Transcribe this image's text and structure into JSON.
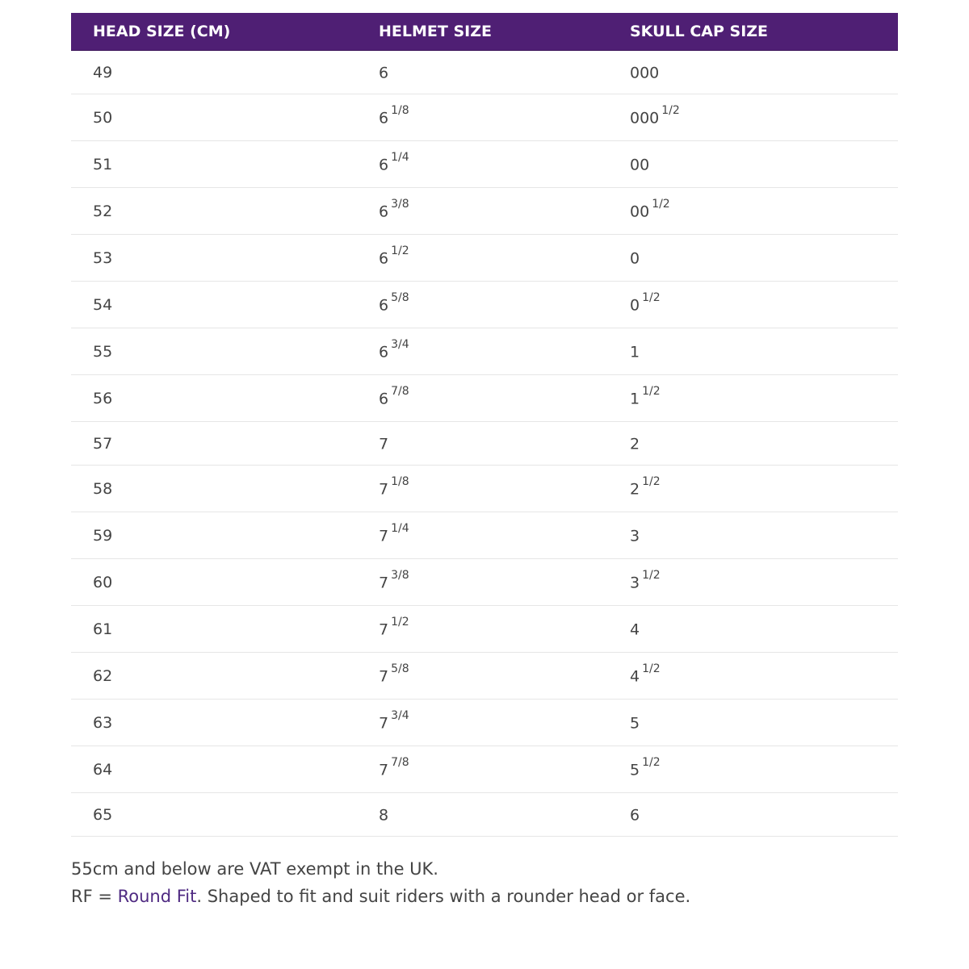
{
  "table": {
    "headers": [
      "HEAD SIZE (CM)",
      "HELMET SIZE",
      "SKULL CAP SIZE"
    ],
    "rows": [
      {
        "head": "49",
        "helmet": "6",
        "helmet_frac": "",
        "cap": "000",
        "cap_frac": ""
      },
      {
        "head": "50",
        "helmet": "6",
        "helmet_frac": "1/8",
        "cap": "000",
        "cap_frac": "1/2"
      },
      {
        "head": "51",
        "helmet": "6",
        "helmet_frac": "1/4",
        "cap": "00",
        "cap_frac": ""
      },
      {
        "head": "52",
        "helmet": "6",
        "helmet_frac": "3/8",
        "cap": "00",
        "cap_frac": "1/2"
      },
      {
        "head": "53",
        "helmet": "6",
        "helmet_frac": "1/2",
        "cap": "0",
        "cap_frac": ""
      },
      {
        "head": "54",
        "helmet": "6",
        "helmet_frac": "5/8",
        "cap": "0",
        "cap_frac": "1/2"
      },
      {
        "head": "55",
        "helmet": "6",
        "helmet_frac": "3/4",
        "cap": "1",
        "cap_frac": ""
      },
      {
        "head": "56",
        "helmet": "6",
        "helmet_frac": "7/8",
        "cap": "1",
        "cap_frac": "1/2"
      },
      {
        "head": "57",
        "helmet": "7",
        "helmet_frac": "",
        "cap": "2",
        "cap_frac": ""
      },
      {
        "head": "58",
        "helmet": "7",
        "helmet_frac": "1/8",
        "cap": "2",
        "cap_frac": "1/2"
      },
      {
        "head": "59",
        "helmet": "7",
        "helmet_frac": "1/4",
        "cap": "3",
        "cap_frac": ""
      },
      {
        "head": "60",
        "helmet": "7",
        "helmet_frac": "3/8",
        "cap": "3",
        "cap_frac": "1/2"
      },
      {
        "head": "61",
        "helmet": "7",
        "helmet_frac": "1/2",
        "cap": "4",
        "cap_frac": ""
      },
      {
        "head": "62",
        "helmet": "7",
        "helmet_frac": "5/8",
        "cap": "4",
        "cap_frac": "1/2"
      },
      {
        "head": "63",
        "helmet": "7",
        "helmet_frac": "3/4",
        "cap": "5",
        "cap_frac": ""
      },
      {
        "head": "64",
        "helmet": "7",
        "helmet_frac": "7/8",
        "cap": "5",
        "cap_frac": "1/2"
      },
      {
        "head": "65",
        "helmet": "8",
        "helmet_frac": "",
        "cap": "6",
        "cap_frac": ""
      }
    ]
  },
  "notes": {
    "vat": "55cm and below are VAT exempt in the UK.",
    "rf_prefix": "RF = ",
    "rf_link": "Round Fit",
    "rf_suffix": ". Shaped to fit and suit riders with a rounder head or face."
  },
  "colors": {
    "header_bg": "#4f1f74",
    "link": "#4f2a82"
  }
}
